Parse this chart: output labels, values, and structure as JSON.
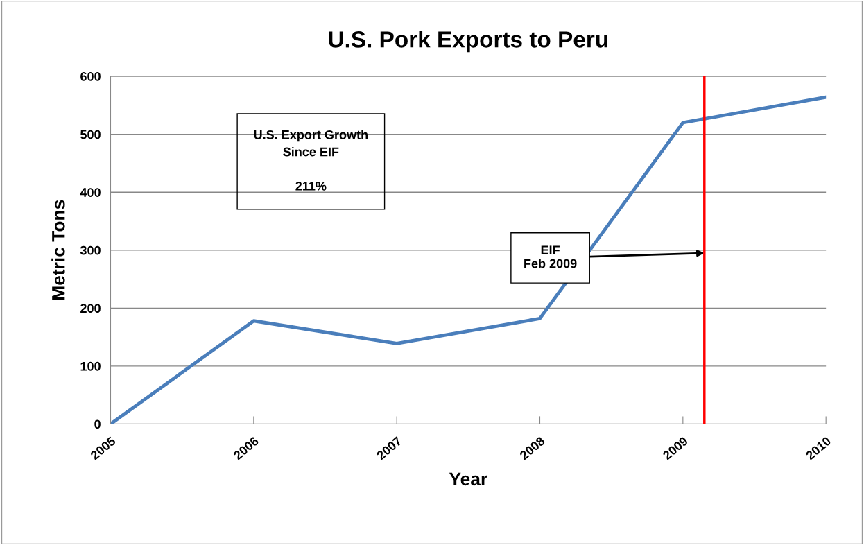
{
  "chart_data": {
    "type": "line",
    "title": "U.S. Pork Exports to Peru",
    "xlabel": "Year",
    "ylabel": "Metric Tons",
    "x": [
      2005,
      2006,
      2007,
      2008,
      2009,
      2010
    ],
    "series": [
      {
        "color": "#4a7ebb",
        "values": [
          0,
          178,
          139,
          182,
          520,
          564
        ]
      }
    ],
    "xlim": [
      2005,
      2010
    ],
    "xticks": [
      2005,
      2006,
      2007,
      2008,
      2009,
      2010
    ],
    "ylim": [
      0,
      600
    ],
    "yticks": [
      0,
      100,
      200,
      300,
      400,
      500,
      600
    ],
    "grid": "y",
    "legend": false,
    "marker": "none",
    "line_style": "solid",
    "ref_lines": [
      {
        "axis": "x",
        "value": 2009.15,
        "color": "#ff0000"
      }
    ],
    "annotations": [
      "U.S. Export Growth\nSince EIF\n\n211%",
      {
        "text": "EIF\nFeb 2009",
        "x": 2009.15,
        "y": 295
      }
    ]
  }
}
